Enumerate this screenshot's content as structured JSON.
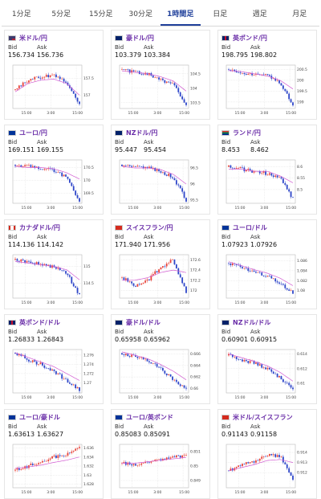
{
  "tabs": [
    {
      "label": "1分足",
      "active": false
    },
    {
      "label": "5分足",
      "active": false
    },
    {
      "label": "15分足",
      "active": false
    },
    {
      "label": "30分足",
      "active": false
    },
    {
      "label": "1時間足",
      "active": true
    },
    {
      "label": "日足",
      "active": false
    },
    {
      "label": "週足",
      "active": false
    },
    {
      "label": "月足",
      "active": false
    }
  ],
  "quote_labels": {
    "bid": "Bid",
    "ask": "Ask"
  },
  "colors": {
    "up": "#e8443a",
    "down": "#2e46c9",
    "ma": "#d15ad1",
    "grid": "#d9d9d9",
    "active_tab": "#1f3f9a",
    "pair_text": "#6a2ea8"
  },
  "cards": [
    {
      "pair": "米ドル/円",
      "bid": "156.734",
      "ask": "156.736",
      "flag": "flag-us",
      "x_ticks": [
        "15:00",
        "3:00",
        "15:00"
      ],
      "y_ticks": [
        "157.5",
        "157"
      ],
      "ylim": [
        156.6,
        157.9
      ],
      "trend": [
        157.15,
        157.45,
        157.55,
        157.6,
        157.4,
        156.7
      ],
      "ma": [
        157.1,
        157.35,
        157.45,
        157.48,
        157.35,
        157.0
      ]
    },
    {
      "pair": "豪ドル/円",
      "bid": "103.379",
      "ask": "103.384",
      "flag": "flag-au",
      "x_ticks": [
        "15:00",
        "3:00",
        "15:00"
      ],
      "y_ticks": [
        "104.5",
        "104",
        "103.5"
      ],
      "ylim": [
        103.3,
        104.8
      ],
      "trend": [
        104.65,
        104.55,
        104.5,
        104.3,
        104.15,
        103.4
      ],
      "ma": [
        104.6,
        104.55,
        104.5,
        104.4,
        104.25,
        103.9
      ]
    },
    {
      "pair": "英ポンド/円",
      "bid": "198.795",
      "ask": "198.802",
      "flag": "flag-gb",
      "x_ticks": [
        "15:00",
        "3:00",
        "15:00"
      ],
      "y_ticks": [
        "200.5",
        "200",
        "199.5",
        "199"
      ],
      "ylim": [
        198.7,
        200.7
      ],
      "trend": [
        200.5,
        200.35,
        200.3,
        200.2,
        199.9,
        198.85
      ],
      "ma": [
        200.45,
        200.4,
        200.3,
        200.2,
        200.0,
        199.6
      ]
    },
    {
      "pair": "ユーロ/円",
      "bid": "169.151",
      "ask": "169.155",
      "flag": "flag-eu",
      "x_ticks": [
        "15:00",
        "3:00",
        "15:00"
      ],
      "y_ticks": [
        "170.5",
        "170",
        "169.5"
      ],
      "ylim": [
        169.1,
        170.8
      ],
      "trend": [
        170.6,
        170.55,
        170.45,
        170.4,
        170.1,
        169.2
      ],
      "ma": [
        170.55,
        170.5,
        170.5,
        170.45,
        170.3,
        170.05
      ]
    },
    {
      "pair": "NZドル/円",
      "bid": "95.447",
      "ask": "95.454",
      "flag": "flag-nz",
      "x_ticks": [
        "15:00",
        "3:00",
        "15:00"
      ],
      "y_ticks": [
        "96.5",
        "96",
        "95.5"
      ],
      "ylim": [
        95.4,
        96.75
      ],
      "trend": [
        96.6,
        96.55,
        96.5,
        96.4,
        96.2,
        95.5
      ],
      "ma": [
        96.55,
        96.5,
        96.5,
        96.45,
        96.3,
        96.0
      ]
    },
    {
      "pair": "ランド/円",
      "bid": "8.453",
      "ask": "8.462",
      "flag": "flag-za",
      "x_ticks": [
        "15:00",
        "3:00",
        "15:00"
      ],
      "y_ticks": [
        "8.6",
        "8.55",
        "8.5"
      ],
      "ylim": [
        8.44,
        8.63
      ],
      "trend": [
        8.6,
        8.59,
        8.58,
        8.57,
        8.55,
        8.46
      ],
      "ma": [
        8.59,
        8.59,
        8.58,
        8.58,
        8.56,
        8.53
      ]
    },
    {
      "pair": "カナダドル/円",
      "bid": "114.136",
      "ask": "114.142",
      "flag": "flag-ca",
      "x_ticks": [
        "15:00",
        "3:00",
        "15:00"
      ],
      "y_ticks": [
        "115",
        "114.5"
      ],
      "ylim": [
        114.05,
        115.35
      ],
      "trend": [
        115.2,
        115.15,
        115.05,
        115.0,
        114.8,
        114.15
      ],
      "ma": [
        115.15,
        115.1,
        115.05,
        115.0,
        114.9,
        114.6
      ]
    },
    {
      "pair": "スイスフラン/円",
      "bid": "171.940",
      "ask": "171.956",
      "flag": "flag-ch",
      "x_ticks": [
        "15:00",
        "3:00",
        "15:00"
      ],
      "y_ticks": [
        "172.6",
        "172.4",
        "172.2",
        "172"
      ],
      "ylim": [
        171.85,
        172.7
      ],
      "trend": [
        172.25,
        172.1,
        172.2,
        172.45,
        172.6,
        171.95
      ],
      "ma": [
        172.2,
        172.2,
        172.25,
        172.35,
        172.4,
        172.35
      ]
    },
    {
      "pair": "ユーロ/ドル",
      "bid": "1.07923",
      "ask": "1.07926",
      "flag": "flag-eu",
      "x_ticks": [
        "15:00",
        "3:00",
        "15:00"
      ],
      "y_ticks": [
        "1.086",
        "1.084",
        "1.082",
        "1.08"
      ],
      "ylim": [
        1.0785,
        1.0872
      ],
      "trend": [
        1.0855,
        1.0845,
        1.0835,
        1.083,
        1.0815,
        1.0795
      ],
      "ma": [
        1.0858,
        1.085,
        1.0842,
        1.0835,
        1.0825,
        1.081
      ]
    },
    {
      "pair": "英ポンド/ドル",
      "bid": "1.26833",
      "ask": "1.26843",
      "flag": "flag-gb",
      "x_ticks": [
        "15:00",
        "3:00",
        "15:00"
      ],
      "y_ticks": [
        "1.276",
        "1.274",
        "1.272",
        "1.27"
      ],
      "ylim": [
        1.2678,
        1.2772
      ],
      "trend": [
        1.2765,
        1.275,
        1.274,
        1.2725,
        1.2705,
        1.2685
      ],
      "ma": [
        1.2765,
        1.2755,
        1.2745,
        1.2735,
        1.272,
        1.2705
      ]
    },
    {
      "pair": "豪ドル/ドル",
      "bid": "0.65958",
      "ask": "0.65962",
      "flag": "flag-au",
      "x_ticks": [
        "15:00",
        "3:00",
        "15:00"
      ],
      "y_ticks": [
        "0.666",
        "0.664",
        "0.662",
        "0.66"
      ],
      "ylim": [
        0.6592,
        0.6668
      ],
      "trend": [
        0.6662,
        0.6655,
        0.665,
        0.6635,
        0.6615,
        0.6597
      ],
      "ma": [
        0.6664,
        0.6658,
        0.6652,
        0.6642,
        0.663,
        0.6615
      ]
    },
    {
      "pair": "NZドル/ドル",
      "bid": "0.60901",
      "ask": "0.60915",
      "flag": "flag-nz",
      "x_ticks": [
        "15:00",
        "3:00",
        "15:00"
      ],
      "y_ticks": [
        "0.614",
        "0.612",
        "0.61"
      ],
      "ylim": [
        0.6087,
        0.6146
      ],
      "trend": [
        0.6138,
        0.6132,
        0.6128,
        0.612,
        0.6108,
        0.6091
      ],
      "ma": [
        0.614,
        0.6135,
        0.613,
        0.6124,
        0.6115,
        0.6103
      ]
    },
    {
      "pair": "ユーロ/豪ドル",
      "bid": "1.63613",
      "ask": "1.63627",
      "flag": "flag-eu",
      "x_ticks": [
        "15:00",
        "3:00",
        "15:00"
      ],
      "y_ticks": [
        "1.636",
        "1.634",
        "1.632",
        "1.63",
        "1.628"
      ],
      "ylim": [
        1.6272,
        1.6368
      ],
      "trend": [
        1.631,
        1.632,
        1.633,
        1.634,
        1.6345,
        1.6362
      ],
      "ma": [
        1.6315,
        1.6318,
        1.6322,
        1.6328,
        1.6333,
        1.634
      ]
    },
    {
      "pair": "ユーロ/英ポンド",
      "bid": "0.85083",
      "ask": "0.85091",
      "flag": "flag-eu",
      "x_ticks": [
        "15:00",
        "3:00",
        "15:00"
      ],
      "y_ticks": [
        "0.851",
        "0.85",
        "0.849"
      ],
      "ylim": [
        0.8485,
        0.8515
      ],
      "trend": [
        0.8502,
        0.8501,
        0.8503,
        0.8505,
        0.8506,
        0.8508
      ],
      "ma": [
        0.8502,
        0.8502,
        0.8503,
        0.8504,
        0.8505,
        0.8506
      ]
    },
    {
      "pair": "米ドル/スイスフラン",
      "bid": "0.91143",
      "ask": "0.91158",
      "flag": "flag-ch",
      "x_ticks": [
        "15:00",
        "3:00",
        "15:00"
      ],
      "y_ticks": [
        "0.914",
        "0.913",
        "0.912"
      ],
      "ylim": [
        0.9105,
        0.9148
      ],
      "trend": [
        0.9122,
        0.9128,
        0.913,
        0.9138,
        0.9136,
        0.9114
      ],
      "ma": [
        0.9122,
        0.9125,
        0.9128,
        0.9132,
        0.9133,
        0.913
      ]
    }
  ]
}
